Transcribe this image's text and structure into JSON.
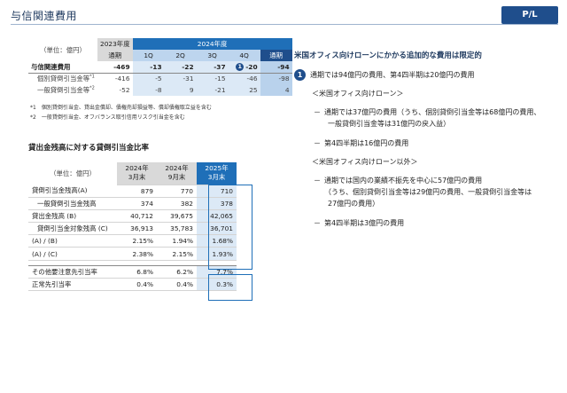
{
  "header": {
    "title": "与信関連費用",
    "badge": "P/L"
  },
  "table1": {
    "unit": "（単位：億円）",
    "year23": "2023年度",
    "year24": "2024年度",
    "col_full": "通期",
    "quarters": [
      "1Q",
      "2Q",
      "3Q",
      "4Q"
    ],
    "marker": "1",
    "rows": [
      {
        "label": "与信関連費用",
        "fy23": "-469",
        "q": [
          "-13",
          "-22",
          "-37",
          "-20"
        ],
        "fy24": "-94",
        "sup": ""
      },
      {
        "label": "個別貸倒引当金等",
        "fy23": "-416",
        "q": [
          "-5",
          "-31",
          "-15",
          "-46"
        ],
        "fy24": "-98",
        "sup": "*1"
      },
      {
        "label": "一般貸倒引当金等",
        "fy23": "-52",
        "q": [
          "-8",
          "9",
          "-21",
          "25"
        ],
        "fy24": "4",
        "sup": "*2"
      }
    ]
  },
  "notes": [
    "*1　個別貸倒引当金、貸出金償却、債権売却損益等、償却債権取立益を含む",
    "*2　一般貸倒引当金、オフバランス取引信用リスク引当金を含む"
  ],
  "section2_title": "貸出金残高に対する貸倒引当金比率",
  "table2": {
    "unit": "（単位：億円）",
    "headers": [
      [
        "2024年",
        "3月末"
      ],
      [
        "2024年",
        "9月末"
      ],
      [
        "2025年",
        "3月末"
      ]
    ],
    "rows": [
      {
        "label": "貸倒引当金残高(A)",
        "v": [
          "879",
          "770",
          "710"
        ]
      },
      {
        "label": "一般貸倒引当金残高",
        "v": [
          "374",
          "382",
          "378"
        ]
      },
      {
        "label": "貸出金残高 (B)",
        "v": [
          "40,712",
          "39,675",
          "42,065"
        ]
      },
      {
        "label": "貸倒引当金対象残高 (C)",
        "v": [
          "36,913",
          "35,783",
          "36,701"
        ]
      },
      {
        "label": "(A) / (B)",
        "v": [
          "2.15%",
          "1.94%",
          "1.68%"
        ]
      },
      {
        "label": "(A) / (C)",
        "v": [
          "2.38%",
          "2.15%",
          "1.93%"
        ]
      },
      {
        "label": "その他要注意先引当率",
        "v": [
          "6.8%",
          "6.2%",
          "7.7%"
        ]
      },
      {
        "label": "正常先引当率",
        "v": [
          "0.4%",
          "0.4%",
          "0.3%"
        ]
      }
    ]
  },
  "right": {
    "title": "米国オフィス向けローンにかかる追加的な費用は限定的",
    "point_num": "1",
    "point1": "通期では94億円の費用、第4四半期は20億円の費用",
    "group1": "＜米国オフィス向けローン＞",
    "b1": "通期では37億円の費用（うち、個別貸倒引当金等は68億円の費用、",
    "b1c": "一般貸倒引当金等は31億円の戻入益）",
    "b2": "第4四半期は16億円の費用",
    "group2": "＜米国オフィス向けローン以外＞",
    "b3": "通期では国内の業績不振先を中心に57億円の費用",
    "b3c1": "（うち、個別貸倒引当金等は29億円の費用、一般貸倒引当金等は",
    "b3c2": "27億円の費用）",
    "b4": "第4四半期は3億円の費用",
    "dash": "－"
  }
}
